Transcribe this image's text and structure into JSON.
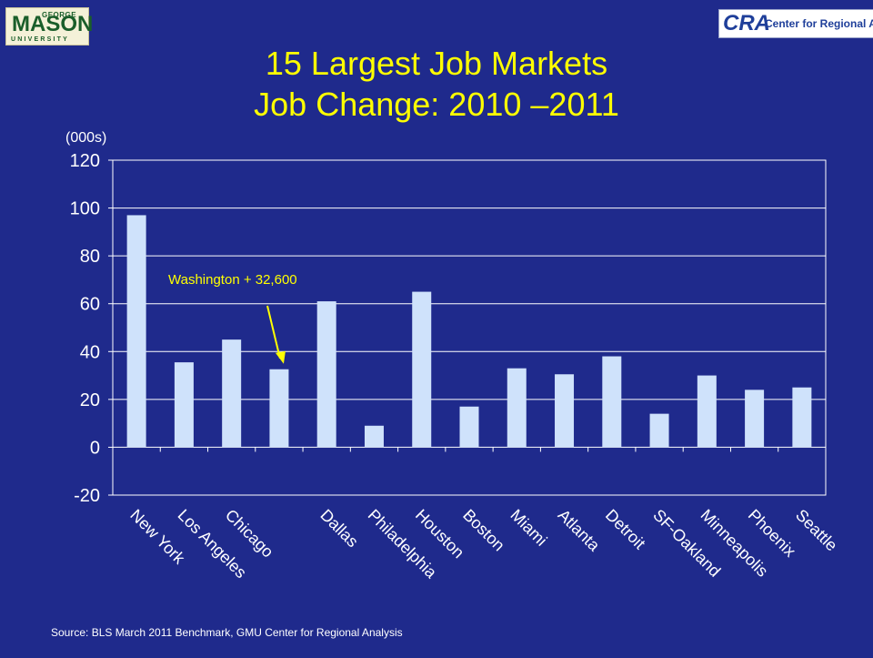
{
  "logos": {
    "gmu_top": "GEORGE",
    "gmu_main": "MASON",
    "gmu_bottom": "UNIVERSITY",
    "cra_mark": "CRA",
    "cra_text": "Center for Regional Analysis"
  },
  "title_line1": "15 Largest Job Markets",
  "title_line2": "Job Change: 2010 –2011",
  "source": "Source: BLS March 2011 Benchmark, GMU Center for Regional Analysis",
  "colors": {
    "background": "#1f2a8c",
    "bar": "#cfe2fb",
    "title": "#ffff00",
    "annotation": "#ffff00",
    "text": "#ffffff"
  },
  "chart_data": {
    "type": "bar",
    "title": "15 Largest Job Markets Job Change: 2010 –2011",
    "ylabel": "(000s)",
    "xlabel": "",
    "categories": [
      "New York",
      "Los Angeles",
      "Chicago",
      "",
      "Dallas",
      "Philadelphia",
      "Houston",
      "Boston",
      "Miami",
      "Atlanta",
      "Detroit",
      "SF-Oakland",
      "Minneapolis",
      "Phoenix",
      "Seattle"
    ],
    "values": [
      97,
      35.5,
      45,
      32.6,
      61,
      9,
      65,
      17,
      33,
      30.5,
      38,
      14,
      30,
      24,
      25
    ],
    "ylim": [
      -20,
      120
    ],
    "yticks": [
      -20,
      0,
      20,
      40,
      60,
      80,
      100,
      120
    ],
    "grid": true,
    "legend": "none",
    "annotation": {
      "text": "Washington + 32,600",
      "target_index": 3
    }
  }
}
